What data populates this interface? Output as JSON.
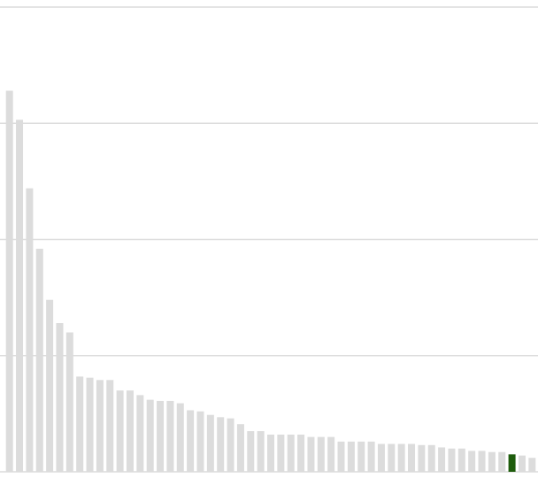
{
  "chart_data": {
    "type": "bar",
    "categories": [
      null,
      null,
      null,
      null,
      null,
      null,
      null,
      null,
      null,
      null,
      null,
      null,
      null,
      null,
      null,
      null,
      null,
      null,
      null,
      null,
      null,
      null,
      null,
      null,
      null,
      null,
      null,
      null,
      null,
      null,
      null,
      null,
      null,
      null,
      null,
      null,
      null,
      null,
      null,
      null,
      null,
      null,
      null,
      null,
      null,
      null,
      null,
      null,
      null,
      null,
      null,
      null,
      null
    ],
    "values": [
      3.28,
      3.03,
      2.44,
      1.92,
      1.48,
      1.28,
      1.2,
      0.82,
      0.81,
      0.79,
      0.79,
      0.7,
      0.7,
      0.66,
      0.62,
      0.61,
      0.61,
      0.59,
      0.53,
      0.52,
      0.49,
      0.47,
      0.46,
      0.41,
      0.35,
      0.35,
      0.32,
      0.32,
      0.32,
      0.32,
      0.3,
      0.3,
      0.3,
      0.26,
      0.26,
      0.26,
      0.26,
      0.24,
      0.24,
      0.24,
      0.24,
      0.23,
      0.23,
      0.21,
      0.2,
      0.2,
      0.18,
      0.18,
      0.17,
      0.17,
      0.15,
      0.14,
      0.12
    ],
    "colors": [
      "#dcdcdc",
      "#dcdcdc",
      "#dcdcdc",
      "#dcdcdc",
      "#dcdcdc",
      "#dcdcdc",
      "#dcdcdc",
      "#dcdcdc",
      "#dcdcdc",
      "#dcdcdc",
      "#dcdcdc",
      "#dcdcdc",
      "#dcdcdc",
      "#dcdcdc",
      "#dcdcdc",
      "#dcdcdc",
      "#dcdcdc",
      "#dcdcdc",
      "#dcdcdc",
      "#dcdcdc",
      "#dcdcdc",
      "#dcdcdc",
      "#dcdcdc",
      "#dcdcdc",
      "#dcdcdc",
      "#dcdcdc",
      "#dcdcdc",
      "#dcdcdc",
      "#dcdcdc",
      "#dcdcdc",
      "#dcdcdc",
      "#dcdcdc",
      "#dcdcdc",
      "#dcdcdc",
      "#dcdcdc",
      "#dcdcdc",
      "#dcdcdc",
      "#dcdcdc",
      "#dcdcdc",
      "#dcdcdc",
      "#dcdcdc",
      "#dcdcdc",
      "#dcdcdc",
      "#dcdcdc",
      "#dcdcdc",
      "#dcdcdc",
      "#dcdcdc",
      "#dcdcdc",
      "#dcdcdc",
      "#dcdcdc",
      "#1e5c0c",
      "#dcdcdc",
      "#dcdcdc"
    ],
    "ylim": [
      0,
      4
    ],
    "yticks": [
      0,
      1,
      2,
      3,
      4
    ],
    "grid": true
  }
}
